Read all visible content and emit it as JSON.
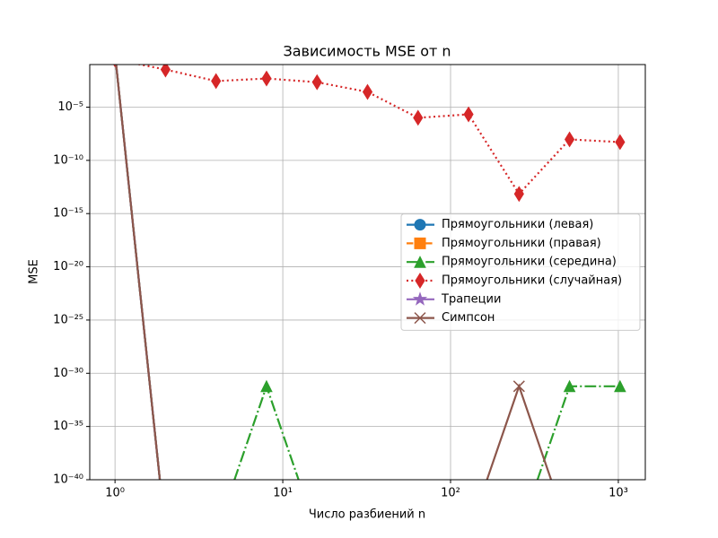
{
  "chart_data": {
    "type": "line",
    "title": "Зависимость MSE от n",
    "x_label": "Число разбиений n",
    "y_label": "MSE",
    "x": [
      1,
      2,
      4,
      8,
      16,
      32,
      64,
      128,
      256,
      512,
      1024
    ],
    "x_scale": "log",
    "y_scale": "log",
    "grid": true,
    "legend": "center right",
    "xlim": [
      0.707,
      1448
    ],
    "ylim": [
      1e-40,
      0.1
    ],
    "xticks": [
      {
        "value": 1,
        "label": "10⁰"
      },
      {
        "value": 10,
        "label": "10¹"
      },
      {
        "value": 100,
        "label": "10²"
      },
      {
        "value": 1000,
        "label": "10³"
      }
    ],
    "yticks": [
      {
        "value": 1e-40,
        "label": "10⁻⁴⁰"
      },
      {
        "value": 1e-35,
        "label": "10⁻³⁵"
      },
      {
        "value": 1e-30,
        "label": "10⁻³⁰"
      },
      {
        "value": 1e-25,
        "label": "10⁻²⁵"
      },
      {
        "value": 1e-20,
        "label": "10⁻²⁰"
      },
      {
        "value": 1e-15,
        "label": "10⁻¹⁵"
      },
      {
        "value": 1e-10,
        "label": "10⁻¹⁰"
      },
      {
        "value": 1e-05,
        "label": "10⁻⁵"
      }
    ],
    "series": [
      {
        "name": "Прямоугольники (левая)",
        "color": "#1f77b4",
        "line_style": "solid",
        "marker": "circle",
        "values": [
          1,
          0,
          0,
          0,
          0,
          0,
          0,
          0,
          0,
          0,
          0
        ]
      },
      {
        "name": "Прямоугольники (правая)",
        "color": "#ff7f0e",
        "line_style": "dashed",
        "marker": "square",
        "values": [
          1,
          0,
          0,
          0,
          0,
          0,
          0,
          0,
          0,
          0,
          0
        ]
      },
      {
        "name": "Прямоугольники (середина)",
        "color": "#2ca02c",
        "line_style": "dashdot",
        "marker": "triangle",
        "values": [
          1,
          0,
          0,
          6e-32,
          0,
          0,
          0,
          0,
          0,
          6e-32,
          6e-32
        ]
      },
      {
        "name": "Прямоугольники (случайная)",
        "color": "#d62728",
        "line_style": "dotted",
        "marker": "diamond",
        "values": [
          0.3,
          0.034,
          0.0028,
          0.0049,
          0.0022,
          0.00027,
          1e-06,
          2.1e-06,
          7e-14,
          9.3e-09,
          5.2e-09
        ]
      },
      {
        "name": "Трапеции",
        "color": "#9467bd",
        "line_style": "solid",
        "marker": "star",
        "values": [
          1,
          0,
          0,
          0,
          0,
          0,
          0,
          0,
          0,
          0,
          0
        ]
      },
      {
        "name": "Симпсон",
        "color": "#8c564b",
        "line_style": "solid",
        "marker": "x",
        "values": [
          1,
          0,
          0,
          0,
          0,
          0,
          0,
          0,
          6e-32,
          0,
          0
        ]
      }
    ]
  }
}
